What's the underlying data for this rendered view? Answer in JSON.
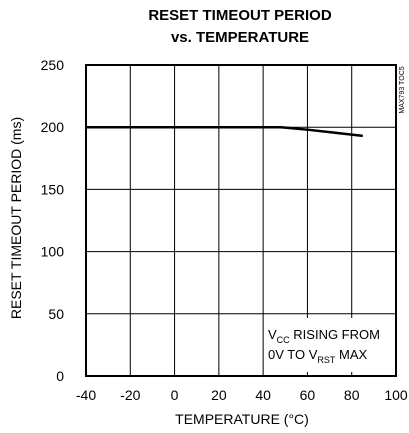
{
  "chart_data": {
    "type": "line",
    "title_line1": "RESET TIMEOUT PERIOD",
    "title_line2": "vs. TEMPERATURE",
    "xlabel": "TEMPERATURE (°C)",
    "ylabel": "RESET TIMEOUT PERIOD (ms)",
    "xlim": [
      -40,
      100
    ],
    "ylim": [
      0,
      250
    ],
    "x_ticks": [
      -40,
      -20,
      0,
      20,
      40,
      60,
      80,
      100
    ],
    "y_ticks": [
      0,
      50,
      100,
      150,
      200,
      250
    ],
    "grid": true,
    "series": [
      {
        "x": [
          -40,
          -20,
          0,
          20,
          40,
          48,
          60,
          70,
          85
        ],
        "y": [
          200,
          200,
          200,
          200,
          200,
          200,
          198,
          196,
          193
        ]
      }
    ],
    "annotation": {
      "vcc_base": "V",
      "vcc_sub": "CC",
      "line1_rest": " RISING FROM",
      "line2_pre": "0V TO  V",
      "line2_sub": "RST",
      "line2_post": " MAX"
    },
    "figure_code": "MAX793 TOC5"
  }
}
